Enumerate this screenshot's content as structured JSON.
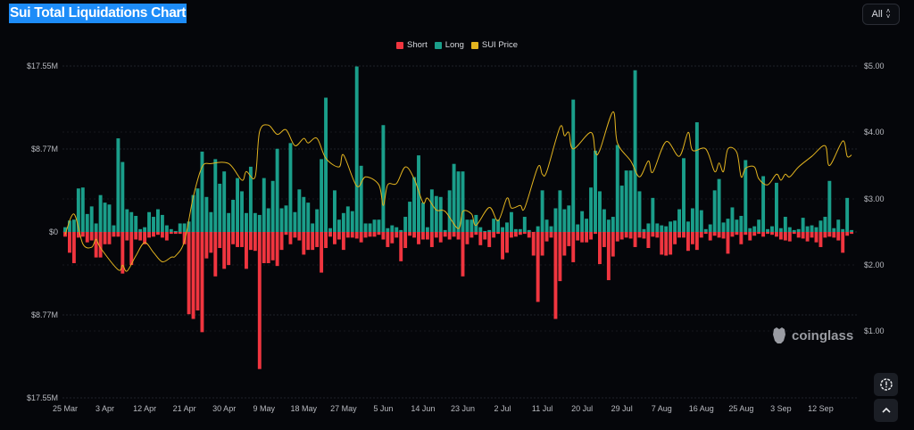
{
  "header": {
    "title": "Sui Total Liquidations Chart",
    "range_select": "All"
  },
  "watermark": "coinglass",
  "colors": {
    "short": "#f0353f",
    "long": "#1a9e8a",
    "price": "#e3b41f",
    "background": "#05060a",
    "title_highlight": "#1d8cf8"
  },
  "icons": {
    "range": "up-down-chevron-icon",
    "settings": "gear-alert-icon",
    "scroll_top": "chevron-up-icon"
  },
  "chart_data": {
    "type": "bar",
    "stacked_diverging": true,
    "legend": [
      {
        "name": "Short",
        "color": "#f0353f"
      },
      {
        "name": "Long",
        "color": "#1a9e8a"
      },
      {
        "name": "SUI Price",
        "color": "#e3b41f"
      }
    ],
    "legend_position": "top-center",
    "grid": true,
    "left_axis": {
      "ticks": [
        "$17.55M",
        "$8.77M",
        "$0",
        "$8.77M",
        "$17.55M"
      ],
      "range_millions": [
        -17.55,
        17.55
      ]
    },
    "right_axis": {
      "ticks": [
        "$5.00",
        "$4.00",
        "$3.00",
        "$2.00",
        "$1.00"
      ],
      "range": [
        0,
        5
      ]
    },
    "x_tick_labels": [
      "25 Mar",
      "3 Apr",
      "12 Apr",
      "21 Apr",
      "30 Apr",
      "9 May",
      "18 May",
      "27 May",
      "5 Jun",
      "14 Jun",
      "23 Jun",
      "2 Jul",
      "11 Jul",
      "20 Jul",
      "29 Jul",
      "7 Aug",
      "16 Aug",
      "25 Aug",
      "3 Sep",
      "12 Sep"
    ],
    "categories": [
      "25 Mar",
      "26 Mar",
      "27 Mar",
      "28 Mar",
      "29 Mar",
      "30 Mar",
      "31 Mar",
      "1 Apr",
      "2 Apr",
      "3 Apr",
      "4 Apr",
      "5 Apr",
      "6 Apr",
      "7 Apr",
      "8 Apr",
      "9 Apr",
      "10 Apr",
      "11 Apr",
      "12 Apr",
      "13 Apr",
      "14 Apr",
      "15 Apr",
      "16 Apr",
      "17 Apr",
      "18 Apr",
      "19 Apr",
      "20 Apr",
      "21 Apr",
      "22 Apr",
      "23 Apr",
      "24 Apr",
      "25 Apr",
      "26 Apr",
      "27 Apr",
      "28 Apr",
      "29 Apr",
      "30 Apr",
      "1 May",
      "2 May",
      "3 May",
      "4 May",
      "5 May",
      "6 May",
      "7 May",
      "8 May",
      "9 May",
      "10 May",
      "11 May",
      "12 May",
      "13 May",
      "14 May",
      "15 May",
      "16 May",
      "17 May",
      "18 May",
      "19 May",
      "20 May",
      "21 May",
      "22 May",
      "23 May",
      "24 May",
      "25 May",
      "26 May",
      "27 May",
      "28 May",
      "29 May",
      "30 May",
      "31 May",
      "1 Jun",
      "2 Jun",
      "3 Jun",
      "4 Jun",
      "5 Jun",
      "6 Jun",
      "7 Jun",
      "8 Jun",
      "9 Jun",
      "10 Jun",
      "11 Jun",
      "12 Jun",
      "13 Jun",
      "14 Jun",
      "15 Jun",
      "16 Jun",
      "17 Jun",
      "18 Jun",
      "19 Jun",
      "20 Jun",
      "21 Jun",
      "22 Jun",
      "23 Jun",
      "24 Jun",
      "25 Jun",
      "26 Jun",
      "27 Jun",
      "28 Jun",
      "29 Jun",
      "30 Jun",
      "1 Jul",
      "2 Jul",
      "3 Jul",
      "4 Jul",
      "5 Jul",
      "6 Jul",
      "7 Jul",
      "8 Jul",
      "9 Jul",
      "10 Jul",
      "11 Jul",
      "12 Jul",
      "13 Jul",
      "14 Jul",
      "15 Jul",
      "16 Jul",
      "17 Jul",
      "18 Jul",
      "19 Jul",
      "20 Jul",
      "21 Jul",
      "22 Jul",
      "23 Jul",
      "24 Jul",
      "25 Jul",
      "26 Jul",
      "27 Jul",
      "28 Jul",
      "29 Jul",
      "30 Jul",
      "31 Jul",
      "1 Aug",
      "2 Aug",
      "3 Aug",
      "4 Aug",
      "5 Aug",
      "6 Aug",
      "7 Aug",
      "8 Aug",
      "9 Aug",
      "10 Aug",
      "11 Aug",
      "12 Aug",
      "13 Aug",
      "14 Aug",
      "15 Aug",
      "16 Aug",
      "17 Aug",
      "18 Aug",
      "19 Aug",
      "20 Aug",
      "21 Aug",
      "22 Aug",
      "23 Aug",
      "24 Aug",
      "25 Aug",
      "26 Aug",
      "27 Aug",
      "28 Aug",
      "29 Aug",
      "30 Aug",
      "31 Aug",
      "1 Sep",
      "2 Sep",
      "3 Sep",
      "4 Sep",
      "5 Sep",
      "6 Sep",
      "7 Sep",
      "8 Sep",
      "9 Sep",
      "10 Sep",
      "11 Sep",
      "12 Sep",
      "13 Sep",
      "14 Sep",
      "15 Sep",
      "16 Sep",
      "17 Sep",
      "18 Sep",
      "19 Sep"
    ],
    "series": [
      {
        "name": "Long",
        "unit": "$M",
        "values": [
          0.5,
          1.2,
          1.3,
          4.6,
          4.7,
          1.9,
          2.7,
          0.9,
          3.9,
          3.1,
          2.9,
          0.7,
          9.9,
          7.4,
          2.4,
          2.1,
          1.7,
          0.3,
          0.5,
          2.1,
          1.6,
          2.4,
          1.8,
          0.7,
          0.3,
          0.1,
          0.9,
          0.9,
          1.1,
          3.9,
          4.6,
          8.5,
          3.7,
          2.1,
          7.7,
          5.1,
          6.4,
          2.0,
          3.4,
          5.7,
          4.3,
          2.0,
          6.9,
          2.0,
          1.8,
          5.7,
          2.5,
          5.4,
          8.8,
          2.5,
          2.8,
          9.4,
          2.1,
          4.5,
          3.7,
          3.1,
          0.9,
          2.4,
          7.7,
          14.2,
          0.4,
          4.4,
          1.3,
          2.0,
          2.7,
          2.2,
          17.5,
          7.0,
          0.9,
          0.9,
          1.3,
          1.3,
          11.3,
          0.4,
          0.7,
          0.5,
          0.2,
          1.6,
          3.2,
          5.8,
          8.1,
          3.1,
          0.5,
          4.5,
          3.8,
          3.7,
          0.2,
          4.4,
          7.2,
          6.4,
          6.4,
          1.3,
          1.3,
          1.8,
          0.5,
          0.1,
          0.2,
          1.4,
          1.3,
          0.5,
          1.0,
          2.1,
          0.3,
          0.3,
          1.6,
          0.2,
          0,
          0.6,
          4.4,
          1.3,
          0.6,
          2.5,
          4.4,
          2.4,
          2.8,
          14.0,
          0.8,
          2.2,
          1.4,
          4.7,
          8.6,
          4.3,
          2.4,
          1.3,
          1.6,
          9.2,
          4.9,
          6.5,
          6.5,
          17.1,
          4.3,
          0.3,
          0.9,
          3.6,
          0.9,
          0.7,
          0.6,
          1.1,
          1.2,
          2.4,
          7.8,
          1.1,
          2.5,
          11.6,
          2.3,
          0.3,
          0.8,
          4.4,
          5.6,
          1.0,
          1.4,
          2.6,
          1.3,
          1.7,
          7.6,
          0.4,
          0.6,
          1.3,
          5.9,
          0.3,
          0.6,
          5.2,
          0.4,
          1.6,
          0.5,
          0.2,
          0.3,
          1.5,
          0.6,
          0.7,
          0.5,
          1.2,
          1.6,
          5.4,
          0.4,
          1.3,
          0.3,
          3.6,
          0.2
        ]
      },
      {
        "name": "Short",
        "unit": "$M",
        "values": [
          0.5,
          2.2,
          3.3,
          0.6,
          0.5,
          1.1,
          0.9,
          2.7,
          2.7,
          1.3,
          1.3,
          0.5,
          0.5,
          4.4,
          0.9,
          3.5,
          0.8,
          0.9,
          1.3,
          0.6,
          0.5,
          0.3,
          0.6,
          0.9,
          0.2,
          0.2,
          0.2,
          1.3,
          8.7,
          9.2,
          8.3,
          10.6,
          2.8,
          2.2,
          4.7,
          1.7,
          3.9,
          3.5,
          1.3,
          1.6,
          1.6,
          3.9,
          1.9,
          2.0,
          14.5,
          3.3,
          3.3,
          3.0,
          3.6,
          1.9,
          0.3,
          1.3,
          0.6,
          0.9,
          2.4,
          1.9,
          1.9,
          1.6,
          4.3,
          1.7,
          0.5,
          1.3,
          0.8,
          1.9,
          0.6,
          0.6,
          0.7,
          1.1,
          0.6,
          0.5,
          0.5,
          0.3,
          0.8,
          1.6,
          1.2,
          0.6,
          3.1,
          1.7,
          0.4,
          0.6,
          1.3,
          0.8,
          0.8,
          1.6,
          0.6,
          1.1,
          0.5,
          0.8,
          0.5,
          0.8,
          4.7,
          1.3,
          0.6,
          0.3,
          1.4,
          0.8,
          1.6,
          0.6,
          0.2,
          2.9,
          2.2,
          0.6,
          0.5,
          0.3,
          0.2,
          0.6,
          2.5,
          7.4,
          2.5,
          1.0,
          0.6,
          9.2,
          5.2,
          2.5,
          1.5,
          3.2,
          0.9,
          1.1,
          1.1,
          0.8,
          0.2,
          3.4,
          1.6,
          5.1,
          2.6,
          1.0,
          0.8,
          0.6,
          0.7,
          1.6,
          0.6,
          0.7,
          1.7,
          0.5,
          0.6,
          2.4,
          2.5,
          2.4,
          1.3,
          0.6,
          0.6,
          2.0,
          1.3,
          1.9,
          0.6,
          0.2,
          0.9,
          0.4,
          0.6,
          0.7,
          2.3,
          0.5,
          0.3,
          1.3,
          0.3,
          0.9,
          0.4,
          0.2,
          0.5,
          0.2,
          0.3,
          0.5,
          0.8,
          0.9,
          1.0,
          0.2,
          0.6,
          0.7,
          1.0,
          0.6,
          1.1,
          1.6,
          0.6,
          0.5,
          0.6,
          0.9,
          2.2,
          0.4,
          0.2
        ]
      },
      {
        "name": "SUI Price",
        "unit": "$",
        "points": [
          [
            "25 Mar",
            2.46
          ],
          [
            "27 Mar",
            2.77
          ],
          [
            "29 Mar",
            2.32
          ],
          [
            "31 Mar",
            2.27
          ],
          [
            "1 Apr",
            2.39
          ],
          [
            "2 Apr",
            2.26
          ],
          [
            "6 Apr",
            1.93
          ],
          [
            "7 Apr",
            2.0
          ],
          [
            "8 Apr",
            1.91
          ],
          [
            "10 Apr",
            2.14
          ],
          [
            "12 Apr",
            2.34
          ],
          [
            "14 Apr",
            2.19
          ],
          [
            "16 Apr",
            2.05
          ],
          [
            "18 Apr",
            2.12
          ],
          [
            "19 Apr",
            2.14
          ],
          [
            "21 Apr",
            2.36
          ],
          [
            "23 Apr",
            3.03
          ],
          [
            "25 Apr",
            3.48
          ],
          [
            "27 Apr",
            3.53
          ],
          [
            "1 May",
            3.53
          ],
          [
            "4 May",
            3.28
          ],
          [
            "5 May",
            3.41
          ],
          [
            "7 May",
            3.33
          ],
          [
            "8 May",
            4.01
          ],
          [
            "10 May",
            4.11
          ],
          [
            "12 May",
            3.97
          ],
          [
            "14 May",
            4.04
          ],
          [
            "16 May",
            3.8
          ],
          [
            "18 May",
            3.91
          ],
          [
            "19 May",
            3.84
          ],
          [
            "21 May",
            3.91
          ],
          [
            "23 May",
            3.61
          ],
          [
            "26 May",
            3.48
          ],
          [
            "27 May",
            3.66
          ],
          [
            "30 May",
            3.19
          ],
          [
            "1 Jun",
            3.33
          ],
          [
            "4 Jun",
            3.21
          ],
          [
            "5 Jun",
            2.9
          ],
          [
            "6 Jun",
            3.21
          ],
          [
            "8 Jun",
            3.23
          ],
          [
            "10 Jun",
            3.48
          ],
          [
            "12 Jun",
            3.3
          ],
          [
            "14 Jun",
            2.94
          ],
          [
            "15 Jun",
            3.01
          ],
          [
            "17 Jun",
            2.83
          ],
          [
            "19 Jun",
            2.81
          ],
          [
            "22 Jun",
            2.55
          ],
          [
            "23 Jun",
            2.81
          ],
          [
            "25 Jun",
            2.77
          ],
          [
            "26 Jun",
            2.6
          ],
          [
            "29 Jun",
            2.87
          ],
          [
            "1 Jul",
            2.67
          ],
          [
            "3 Jul",
            3.01
          ],
          [
            "4 Jul",
            2.86
          ],
          [
            "6 Jul",
            2.9
          ],
          [
            "7 Jul",
            2.86
          ],
          [
            "10 Jul",
            3.48
          ],
          [
            "11 Jul",
            3.37
          ],
          [
            "12 Jul",
            3.41
          ],
          [
            "15 Jul",
            4.08
          ],
          [
            "16 Jul",
            3.95
          ],
          [
            "17 Jul",
            4.0
          ],
          [
            "18 Jul",
            3.75
          ],
          [
            "22 Jul",
            4.0
          ],
          [
            "23 Jul",
            3.7
          ],
          [
            "24 Jul",
            3.73
          ],
          [
            "27 Jul",
            4.31
          ],
          [
            "28 Jul",
            3.84
          ],
          [
            "31 Jul",
            3.57
          ],
          [
            "2 Aug",
            3.33
          ],
          [
            "4 Aug",
            3.57
          ],
          [
            "5 Aug",
            3.4
          ],
          [
            "8 Aug",
            3.86
          ],
          [
            "11 Aug",
            3.64
          ],
          [
            "13 Aug",
            4.0
          ],
          [
            "14 Aug",
            3.73
          ],
          [
            "17 Aug",
            3.75
          ],
          [
            "19 Aug",
            3.41
          ],
          [
            "20 Aug",
            3.54
          ],
          [
            "21 Aug",
            3.41
          ],
          [
            "22 Aug",
            3.75
          ],
          [
            "24 Aug",
            3.7
          ],
          [
            "25 Aug",
            3.33
          ],
          [
            "26 Aug",
            3.46
          ],
          [
            "28 Aug",
            3.48
          ],
          [
            "29 Aug",
            3.3
          ],
          [
            "31 Aug",
            3.21
          ],
          [
            "2 Sep",
            3.37
          ],
          [
            "3 Sep",
            3.28
          ],
          [
            "4 Sep",
            3.37
          ],
          [
            "5 Sep",
            3.33
          ],
          [
            "7 Sep",
            3.48
          ],
          [
            "10 Sep",
            3.64
          ],
          [
            "13 Sep",
            3.8
          ],
          [
            "14 Sep",
            3.5
          ],
          [
            "17 Sep",
            3.87
          ],
          [
            "18 Sep",
            3.64
          ],
          [
            "19 Sep",
            3.66
          ]
        ]
      }
    ]
  }
}
